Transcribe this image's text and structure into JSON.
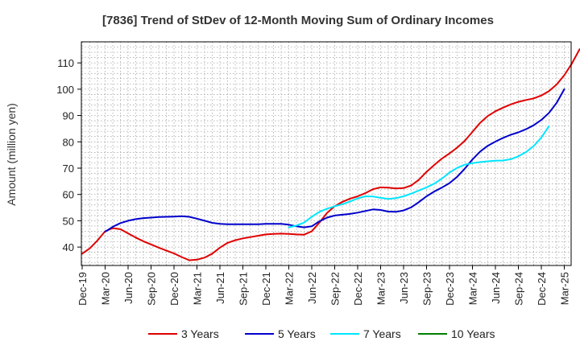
{
  "chart_data": {
    "type": "line",
    "title": "[7836]  Trend of StDev of 12-Month Moving Sum of Ordinary Incomes",
    "xlabel": "",
    "ylabel": "Amount (million yen)",
    "ylim": [
      33,
      118
    ],
    "yticks": [
      40,
      50,
      60,
      70,
      80,
      90,
      100,
      110
    ],
    "grid": true,
    "legend_position": "bottom",
    "x_tick_labels": [
      "Dec-19",
      "Mar-20",
      "Jun-20",
      "Sep-20",
      "Dec-20",
      "Mar-21",
      "Jun-21",
      "Sep-21",
      "Dec-21",
      "Mar-22",
      "Jun-22",
      "Sep-22",
      "Dec-22",
      "Mar-23",
      "Jun-23",
      "Sep-23",
      "Dec-23",
      "Mar-24",
      "Jun-24",
      "Sep-24",
      "Dec-24",
      "Mar-25"
    ],
    "x_start": "Dec-19",
    "x_step_months": 1,
    "series": [
      {
        "name": "3 Years",
        "color": "#e00000",
        "start_index": 0,
        "values": [
          37.5,
          39.5,
          42.5,
          46,
          47.2,
          46.8,
          45.2,
          43.6,
          42.2,
          41,
          39.8,
          38.7,
          37.6,
          36.2,
          35,
          35.2,
          36,
          37.5,
          39.8,
          41.6,
          42.6,
          43.3,
          43.8,
          44.3,
          44.8,
          45,
          45.1,
          45,
          44.8,
          44.7,
          46,
          49.3,
          53,
          55.5,
          57.2,
          58.4,
          59.3,
          60.5,
          62,
          62.7,
          62.6,
          62.3,
          62.4,
          63.4,
          65.6,
          68.6,
          71.2,
          73.6,
          75.6,
          77.8,
          80.4,
          83.8,
          87.2,
          89.8,
          91.6,
          93,
          94.2,
          95.2,
          95.9,
          96.5,
          97.6,
          99.3,
          101.8,
          105.3,
          109.8,
          115.2
        ]
      },
      {
        "name": "5 Years",
        "color": "#0000cc",
        "start_index": 3,
        "values": [
          45.8,
          47.7,
          49.1,
          50,
          50.6,
          51,
          51.2,
          51.4,
          51.5,
          51.6,
          51.7,
          51.5,
          50.8,
          50,
          49.2,
          48.8,
          48.7,
          48.7,
          48.7,
          48.7,
          48.7,
          48.8,
          48.8,
          48.8,
          48.5,
          47.9,
          47.5,
          47.9,
          49.8,
          51.2,
          52,
          52.3,
          52.6,
          53.1,
          53.7,
          54.3,
          54.1,
          53.5,
          53.4,
          53.9,
          55.1,
          57.1,
          59.3,
          61.1,
          62.6,
          64.3,
          66.7,
          69.8,
          73.3,
          76.3,
          78.5,
          80.1,
          81.5,
          82.7,
          83.6,
          84.8,
          86.3,
          88.3,
          91,
          94.8,
          100
        ]
      },
      {
        "name": "7 Years",
        "color": "#00e5ff",
        "start_index": 27,
        "values": [
          47.5,
          48.2,
          49.3,
          51.5,
          53.4,
          54.6,
          55.5,
          56.3,
          57.3,
          58.5,
          59.3,
          59.2,
          58.7,
          58.3,
          58.6,
          59.3,
          60.3,
          61.5,
          62.7,
          64.1,
          66,
          68.3,
          70.1,
          71.3,
          71.9,
          72.3,
          72.6,
          72.8,
          72.9,
          73.4,
          74.5,
          76.1,
          78.4,
          81.6,
          86
        ]
      },
      {
        "name": "10 Years",
        "color": "#008000",
        "start_index": 0,
        "values": []
      }
    ]
  }
}
